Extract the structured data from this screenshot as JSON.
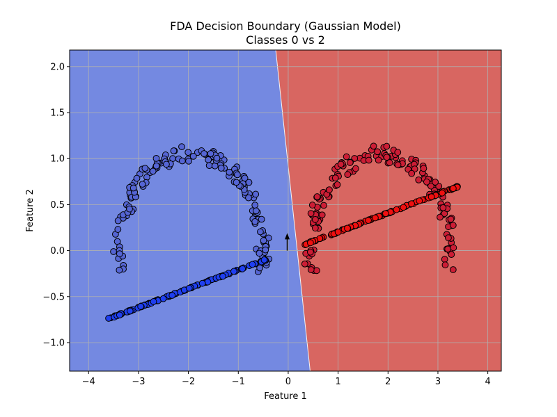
{
  "chart_data": {
    "type": "scatter",
    "title": "FDA Decision Boundary (Gaussian Model)",
    "subtitle": "Classes 0 vs 2",
    "xlabel": "Feature 1",
    "ylabel": "Feature 2",
    "xlim": [
      -4.38,
      4.27
    ],
    "ylim": [
      -1.31,
      2.18
    ],
    "xticks": [
      -4,
      -3,
      -2,
      -1,
      0,
      1,
      2,
      3,
      4
    ],
    "yticks": [
      -1.0,
      -0.5,
      0.0,
      0.5,
      1.0,
      1.5,
      2.0
    ],
    "xtick_labels": [
      "−4",
      "−3",
      "−2",
      "−1",
      "0",
      "1",
      "2",
      "3",
      "4"
    ],
    "ytick_labels": [
      "−1.0",
      "−0.5",
      "0.0",
      "0.5",
      "1.0",
      "1.5",
      "2.0"
    ],
    "grid": true,
    "decision_boundary": {
      "points": [
        [
          -0.25,
          2.18
        ],
        [
          0.44,
          -1.31
        ]
      ]
    },
    "regions": [
      {
        "name": "class 0 region",
        "color": "#7489e1"
      },
      {
        "name": "class 2 region",
        "color": "#d86661"
      }
    ],
    "direction_arrow": {
      "from": [
        -0.02,
        0.0
      ],
      "to": [
        -0.02,
        0.19
      ],
      "color": "#000000"
    },
    "series": [
      {
        "name": "class 0 arc",
        "kind": "arc",
        "color": "#5565d4",
        "center": [
          -1.95,
          -0.05
        ],
        "radius_x": 1.45,
        "radius_y": 1.1,
        "angle_range_deg": [
          -10,
          190
        ],
        "n": 160,
        "seed": 11
      },
      {
        "name": "class 0 projection line",
        "kind": "line",
        "color": "#1f3ff0",
        "start": [
          -3.6,
          -0.74
        ],
        "end": [
          -0.45,
          -0.1
        ],
        "n": 110,
        "seed": 23
      },
      {
        "name": "class 2 arc",
        "kind": "arc",
        "color": "#cc1d35",
        "center": [
          1.85,
          -0.05
        ],
        "radius_x": 1.4,
        "radius_y": 1.1,
        "angle_range_deg": [
          -10,
          190
        ],
        "n": 160,
        "seed": 37
      },
      {
        "name": "class 2 projection line",
        "kind": "line",
        "color": "#f01010",
        "start": [
          0.3,
          0.06
        ],
        "end": [
          3.42,
          0.7
        ],
        "n": 110,
        "seed": 41
      }
    ]
  }
}
